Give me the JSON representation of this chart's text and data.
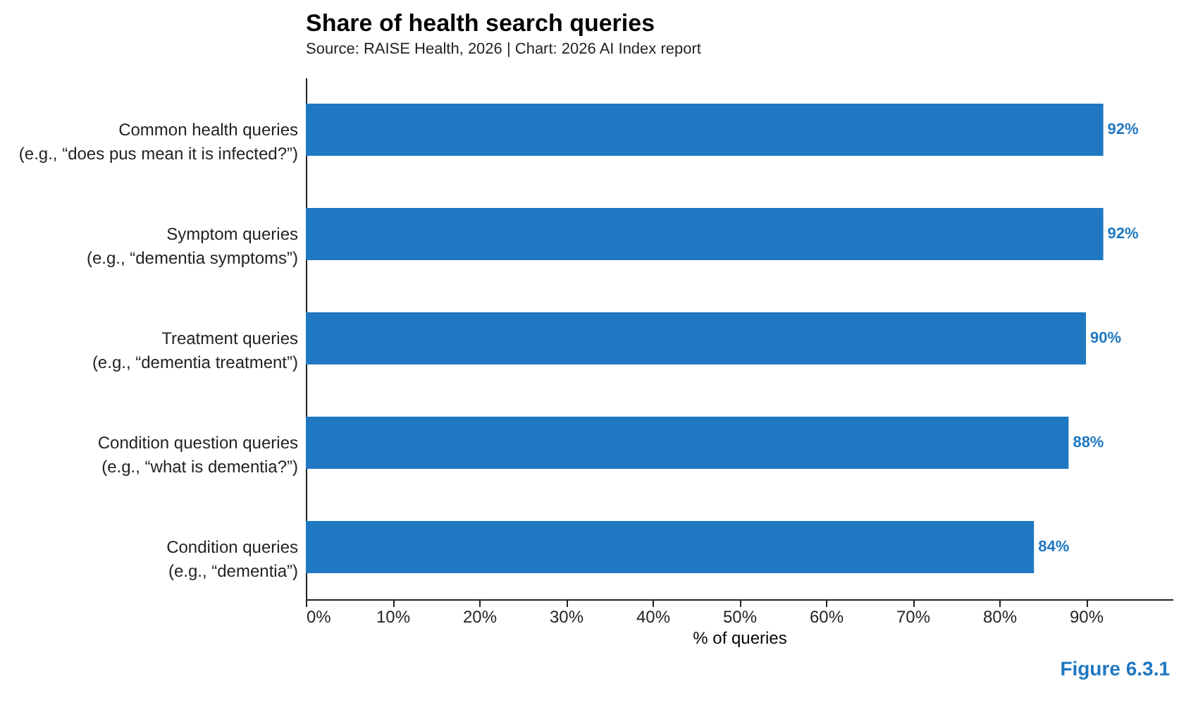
{
  "chart_data": {
    "type": "bar",
    "orientation": "horizontal",
    "title": "Share of health search queries",
    "subtitle": "Source: RAISE Health, 2026 | Chart: 2026 AI Index report",
    "xlabel": "% of queries",
    "categories": [
      "Common health queries\n(e.g., “does pus mean it is infected?”)",
      "Symptom queries\n(e.g., “dementia symptoms”)",
      "Treatment queries\n(e.g., “dementia treatment”)",
      "Condition question queries\n(e.g., “what is dementia?”)",
      "Condition queries\n(e.g., “dementia”)"
    ],
    "values": [
      92,
      92,
      90,
      88,
      84
    ],
    "color": "#1f78c1",
    "value_labels": [
      "92%",
      "92%",
      "90%",
      "88%",
      "84%"
    ],
    "xlim": [
      0,
      100
    ],
    "xticks": [
      {
        "value": 0,
        "label": "0%"
      },
      {
        "value": 10,
        "label": "10%"
      },
      {
        "value": 20,
        "label": "20%"
      },
      {
        "value": 30,
        "label": "30%"
      },
      {
        "value": 40,
        "label": "40%"
      },
      {
        "value": 50,
        "label": "50%"
      },
      {
        "value": 60,
        "label": "60%"
      },
      {
        "value": 70,
        "label": "70%"
      },
      {
        "value": 80,
        "label": "80%"
      },
      {
        "value": 90,
        "label": "90%"
      }
    ],
    "grid": false,
    "annotations": [
      "Figure 6.3.1"
    ]
  }
}
